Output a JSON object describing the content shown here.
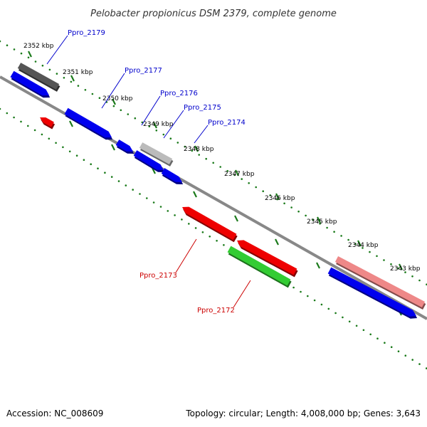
{
  "title": "Pelobacter propionicus DSM 2379, complete genome",
  "footer": {
    "accession": "Accession: NC_008609",
    "summary": "Topology: circular; Length: 4,008,000 bp; Genes: 3,643"
  },
  "colors": {
    "backbone": "#888888",
    "tick": "#1a7a1a",
    "forward_gene": "#0000ee",
    "reverse_gene": "#ee0000",
    "green_feature": "#33cc33",
    "dark_gray_feature": "#555555",
    "light_gray_feature": "#bbbbbb",
    "pink_feature": "#ee8888",
    "forward_label": "#0000cc",
    "reverse_label": "#cc0000"
  },
  "tick_labels": [
    "2352 kbp",
    "2351 kbp",
    "2350 kbp",
    "2349 kbp",
    "2348 kbp",
    "2347 kbp",
    "2346 kbp",
    "2345 kbp",
    "2344 kbp",
    "2343 kbp"
  ],
  "features": [
    {
      "label": "Ppro_2179",
      "strand": "forward"
    },
    {
      "label": "Ppro_2177",
      "strand": "forward"
    },
    {
      "label": "Ppro_2176",
      "strand": "forward"
    },
    {
      "label": "Ppro_2175",
      "strand": "forward"
    },
    {
      "label": "Ppro_2174",
      "strand": "forward"
    },
    {
      "label": "Ppro_2173",
      "strand": "reverse"
    },
    {
      "label": "Ppro_2172",
      "strand": "reverse"
    }
  ]
}
